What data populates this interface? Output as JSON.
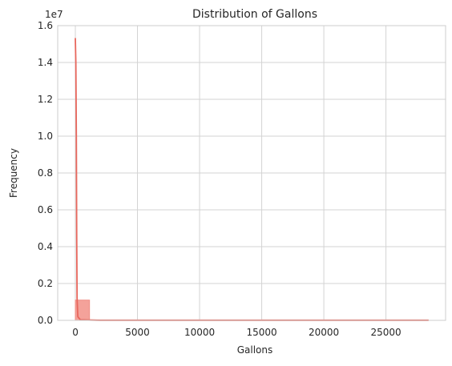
{
  "chart_data": {
    "type": "bar",
    "title": "Distribution of Gallons",
    "xlabel": "Gallons",
    "ylabel": "Frequency",
    "y_offset_text": "1e7",
    "xlim": [
      -1420,
      29800
    ],
    "ylim": [
      0,
      1.6
    ],
    "y_scale_factor": 10000000,
    "grid": true,
    "x_ticks": [
      0,
      5000,
      10000,
      15000,
      20000,
      25000
    ],
    "y_ticks": [
      0.0,
      0.2,
      0.4,
      0.6,
      0.8,
      1.0,
      1.2,
      1.4,
      1.6
    ],
    "x_tick_labels": [
      "0",
      "5000",
      "10000",
      "15000",
      "20000",
      "25000"
    ],
    "y_tick_labels": [
      "0.0",
      "0.2",
      "0.4",
      "0.6",
      "0.8",
      "1.0",
      "1.2",
      "1.4",
      "1.6"
    ],
    "bins": [
      {
        "x0": 0,
        "x1": 1140,
        "value": 0.11
      },
      {
        "x0": 1140,
        "x1": 28400,
        "value": 0.003
      }
    ],
    "kde": [
      {
        "x": 0,
        "y": 1.53
      },
      {
        "x": 40,
        "y": 1.4
      },
      {
        "x": 80,
        "y": 1.0
      },
      {
        "x": 110,
        "y": 0.45
      },
      {
        "x": 140,
        "y": 0.12
      },
      {
        "x": 200,
        "y": 0.02
      },
      {
        "x": 400,
        "y": 0.003
      },
      {
        "x": 2000,
        "y": 0.0
      },
      {
        "x": 28400,
        "y": 0.0
      }
    ],
    "colors": {
      "bar_fill": "#f4a29a",
      "bar_stroke": "#f08f86",
      "kde_line": "#e8675d",
      "grid": "#d3d3d3",
      "axes_edge": "#cccccc"
    }
  }
}
